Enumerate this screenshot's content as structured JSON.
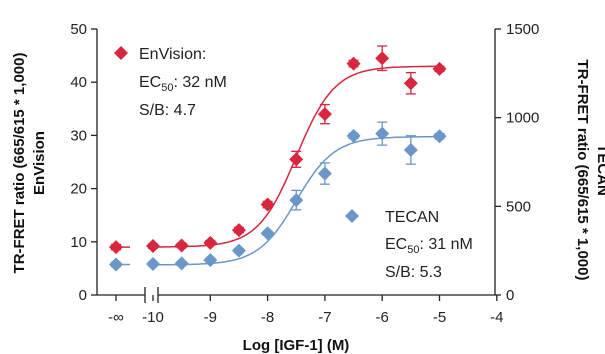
{
  "chart_data": {
    "type": "scatter",
    "xlabel": "Log [IGF-1] (M)",
    "x_ticks": [
      {
        "value": "neg_inf",
        "label": "-∞"
      },
      {
        "value": -10,
        "label": "-10"
      },
      {
        "value": -9,
        "label": "-9"
      },
      {
        "value": -8,
        "label": "-8"
      },
      {
        "value": -7,
        "label": "-7"
      },
      {
        "value": -6,
        "label": "-6"
      },
      {
        "value": -5,
        "label": "-5"
      },
      {
        "value": -4,
        "label": "-4"
      }
    ],
    "xlim": [
      -10.5,
      -4
    ],
    "x_axis_break": true,
    "y_left": {
      "label_line1": "TR-FRET ratio (665/615 * 1,000)",
      "label_line2": "EnVision",
      "ylim": [
        0,
        50
      ],
      "ticks": [
        0,
        10,
        20,
        30,
        40,
        50
      ]
    },
    "y_right": {
      "label_line1": "TR-FRET ratio (665/615 * 1,000)",
      "label_line2": "TECAN",
      "ylim": [
        0,
        1500
      ],
      "ticks": [
        0,
        500,
        1000,
        1500
      ]
    },
    "series": [
      {
        "name": "EnVision",
        "axis": "left",
        "color": "#d7263d",
        "marker": "diamond",
        "ec50_label": "32 nM",
        "sb_label": "4.7",
        "fit": {
          "bottom": 9,
          "top": 43,
          "logEC50": -7.5,
          "hill": 1.3
        },
        "points": [
          {
            "x": "neg_inf",
            "y": 9.0,
            "err": 0.5
          },
          {
            "x": -10.0,
            "y": 9.2,
            "err": 0.4
          },
          {
            "x": -9.5,
            "y": 9.3,
            "err": 0.4
          },
          {
            "x": -9.0,
            "y": 9.8,
            "err": 0.4
          },
          {
            "x": -8.5,
            "y": 12.2,
            "err": 0.5
          },
          {
            "x": -8.0,
            "y": 17.0,
            "err": 0.6
          },
          {
            "x": -7.5,
            "y": 25.5,
            "err": 1.5
          },
          {
            "x": -7.0,
            "y": 34.0,
            "err": 1.8
          },
          {
            "x": -6.5,
            "y": 43.5,
            "err": 0.6
          },
          {
            "x": -6.0,
            "y": 44.5,
            "err": 2.3
          },
          {
            "x": -5.5,
            "y": 39.8,
            "err": 2.0
          },
          {
            "x": -5.0,
            "y": 42.5,
            "err": 0.5
          }
        ]
      },
      {
        "name": "TECAN",
        "axis": "right",
        "color": "#6a96c9",
        "marker": "diamond",
        "ec50_label": "31 nM",
        "sb_label": "5.3",
        "fit": {
          "bottom": 170,
          "top": 893,
          "logEC50": -7.5,
          "hill": 1.3
        },
        "points": [
          {
            "x": "neg_inf",
            "y": 172,
            "err": 12
          },
          {
            "x": -10.0,
            "y": 175,
            "err": 10
          },
          {
            "x": -9.5,
            "y": 178,
            "err": 10
          },
          {
            "x": -9.0,
            "y": 197,
            "err": 10
          },
          {
            "x": -8.5,
            "y": 250,
            "err": 12
          },
          {
            "x": -8.0,
            "y": 348,
            "err": 12
          },
          {
            "x": -7.5,
            "y": 535,
            "err": 55
          },
          {
            "x": -7.0,
            "y": 685,
            "err": 60
          },
          {
            "x": -6.5,
            "y": 897,
            "err": 15
          },
          {
            "x": -6.0,
            "y": 910,
            "err": 65
          },
          {
            "x": -5.5,
            "y": 818,
            "err": 80
          },
          {
            "x": -5.0,
            "y": 895,
            "err": 15
          }
        ]
      }
    ],
    "annotations": {
      "envision": {
        "name": "EnVision:",
        "ec_prefix": "EC",
        "ec_sub": "50",
        "ec_value": ": 32 nM",
        "sb": "S/B: 4.7"
      },
      "tecan": {
        "name": "TECAN",
        "ec_prefix": "EC",
        "ec_sub": "50",
        "ec_value": ": 31 nM",
        "sb": "S/B: 5.3"
      }
    }
  }
}
